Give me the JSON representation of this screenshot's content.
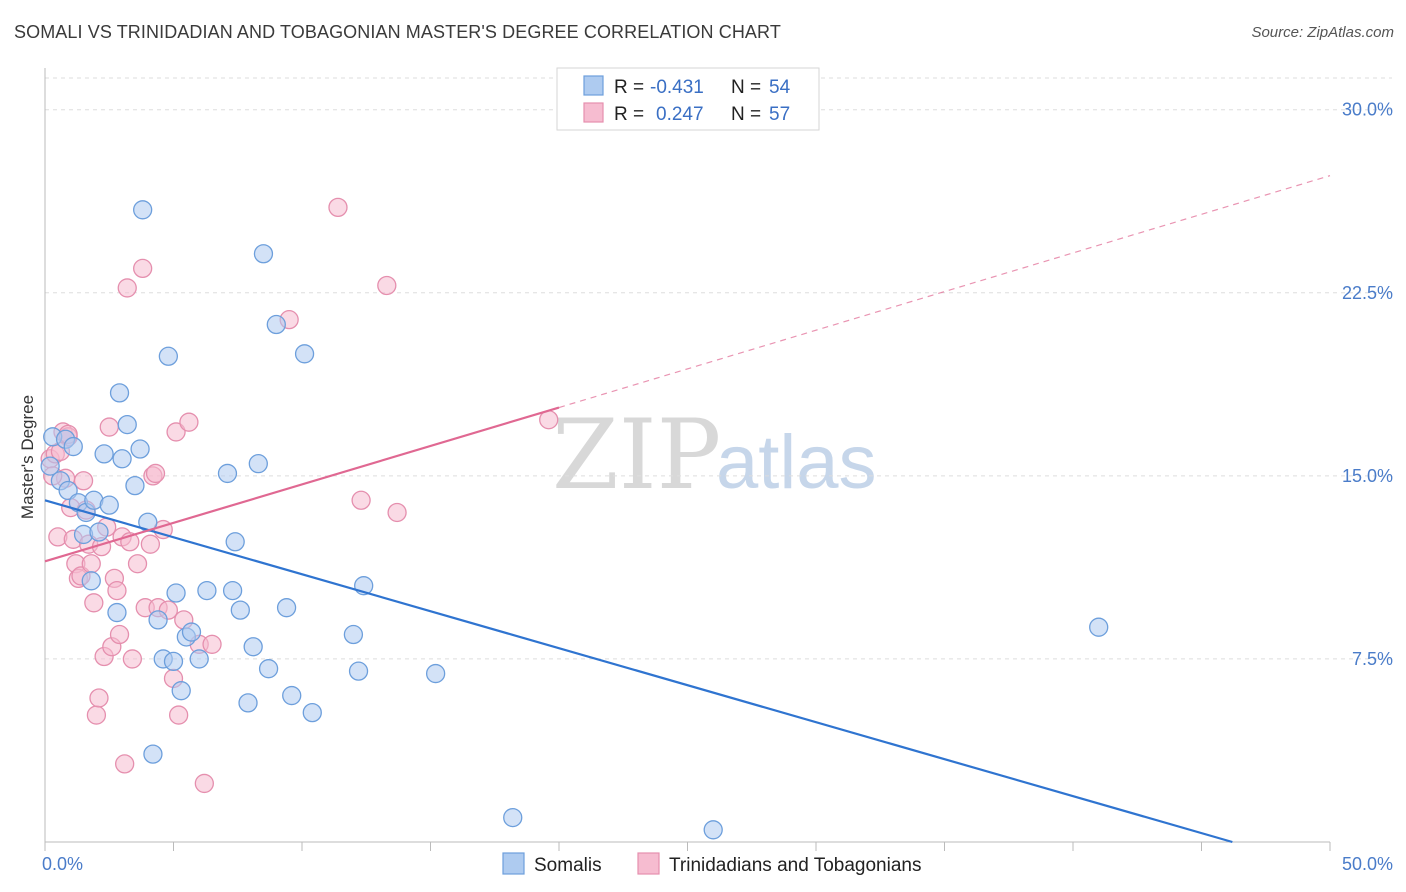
{
  "title": "SOMALI VS TRINIDADIAN AND TOBAGONIAN MASTER'S DEGREE CORRELATION CHART",
  "source": "Source: ZipAtlas.com",
  "colors": {
    "blue_fill": "#aecbf0",
    "blue_stroke": "#6d9fdc",
    "blue_line": "#2f74d0",
    "pink_fill": "#f6bcd0",
    "pink_stroke": "#e58fae",
    "pink_line": "#e06892",
    "tick_text": "#4a7cc9",
    "grid": "#dddddd"
  },
  "chart_data": {
    "type": "scatter",
    "ylabel": "Master's Degree",
    "x_ticks": [
      "0.0%",
      "50.0%"
    ],
    "y_ticks": [
      "30.0%",
      "22.5%",
      "15.0%",
      "7.5%"
    ],
    "y_tick_values": [
      30.0,
      22.5,
      15.0,
      7.5
    ],
    "xlim": [
      0,
      50
    ],
    "ylim": [
      0,
      31.3
    ],
    "grid": true,
    "legend": {
      "placement": "top-center",
      "entries": [
        {
          "r_label": "R =",
          "r_value": "-0.431",
          "n_label": "N =",
          "n_value": "54"
        },
        {
          "r_label": "R =",
          "r_value": "0.247",
          "n_label": "N =",
          "n_value": "57"
        }
      ]
    },
    "bottom_legend": [
      "Somalis",
      "Trinidadians and Tobagonians"
    ],
    "series": [
      {
        "name": "Somalis",
        "trend": {
          "x": [
            0,
            46.2
          ],
          "y": [
            14.0,
            0
          ]
        },
        "points": [
          [
            0.3,
            16.6
          ],
          [
            0.6,
            14.8
          ],
          [
            0.8,
            16.5
          ],
          [
            0.9,
            14.4
          ],
          [
            1.1,
            16.2
          ],
          [
            1.3,
            13.9
          ],
          [
            1.5,
            12.6
          ],
          [
            1.6,
            13.5
          ],
          [
            1.8,
            10.7
          ],
          [
            1.9,
            14.0
          ],
          [
            2.1,
            12.7
          ],
          [
            2.3,
            15.9
          ],
          [
            2.5,
            13.8
          ],
          [
            2.8,
            9.4
          ],
          [
            2.9,
            18.4
          ],
          [
            3.0,
            15.7
          ],
          [
            3.2,
            17.1
          ],
          [
            3.5,
            14.6
          ],
          [
            3.7,
            16.1
          ],
          [
            3.8,
            25.9
          ],
          [
            4.0,
            13.1
          ],
          [
            4.2,
            3.6
          ],
          [
            4.4,
            9.1
          ],
          [
            4.6,
            7.5
          ],
          [
            4.8,
            19.9
          ],
          [
            5.0,
            7.4
          ],
          [
            5.1,
            10.2
          ],
          [
            5.3,
            6.2
          ],
          [
            5.5,
            8.4
          ],
          [
            5.7,
            8.6
          ],
          [
            6.0,
            7.5
          ],
          [
            6.3,
            10.3
          ],
          [
            7.1,
            15.1
          ],
          [
            7.3,
            10.3
          ],
          [
            7.4,
            12.3
          ],
          [
            7.6,
            9.5
          ],
          [
            7.9,
            5.7
          ],
          [
            8.1,
            8.0
          ],
          [
            8.3,
            15.5
          ],
          [
            8.5,
            24.1
          ],
          [
            8.7,
            7.1
          ],
          [
            9.0,
            21.2
          ],
          [
            9.4,
            9.6
          ],
          [
            9.6,
            6.0
          ],
          [
            10.1,
            20.0
          ],
          [
            10.4,
            5.3
          ],
          [
            12.0,
            8.5
          ],
          [
            12.2,
            7.0
          ],
          [
            12.4,
            10.5
          ],
          [
            15.2,
            6.9
          ],
          [
            18.2,
            1.0
          ],
          [
            26.0,
            0.5
          ],
          [
            41.0,
            8.8
          ],
          [
            0.2,
            15.4
          ]
        ]
      },
      {
        "name": "Trinidadians and Tobagonians",
        "trend": {
          "x": [
            0,
            20
          ],
          "y": [
            11.5,
            17.8
          ]
        },
        "trend_extension": {
          "x": [
            20,
            50
          ],
          "y": [
            17.8,
            27.3
          ]
        },
        "points": [
          [
            0.2,
            15.7
          ],
          [
            0.4,
            15.9
          ],
          [
            0.5,
            12.5
          ],
          [
            0.7,
            16.8
          ],
          [
            0.8,
            14.9
          ],
          [
            0.9,
            16.6
          ],
          [
            1.0,
            13.7
          ],
          [
            1.1,
            12.4
          ],
          [
            1.2,
            11.4
          ],
          [
            1.3,
            10.8
          ],
          [
            1.4,
            10.9
          ],
          [
            1.6,
            13.6
          ],
          [
            1.7,
            12.2
          ],
          [
            1.8,
            11.4
          ],
          [
            1.9,
            9.8
          ],
          [
            2.0,
            5.2
          ],
          [
            2.1,
            5.9
          ],
          [
            2.2,
            12.1
          ],
          [
            2.3,
            7.6
          ],
          [
            2.4,
            12.9
          ],
          [
            2.5,
            17.0
          ],
          [
            2.6,
            8.0
          ],
          [
            2.7,
            10.8
          ],
          [
            2.8,
            10.3
          ],
          [
            2.9,
            8.5
          ],
          [
            3.0,
            12.5
          ],
          [
            3.1,
            3.2
          ],
          [
            3.2,
            22.7
          ],
          [
            3.3,
            12.3
          ],
          [
            3.4,
            7.5
          ],
          [
            3.6,
            11.4
          ],
          [
            3.8,
            23.5
          ],
          [
            3.9,
            9.6
          ],
          [
            4.1,
            12.2
          ],
          [
            4.2,
            15.0
          ],
          [
            4.3,
            15.1
          ],
          [
            4.4,
            9.6
          ],
          [
            4.6,
            12.8
          ],
          [
            4.8,
            9.5
          ],
          [
            5.0,
            6.7
          ],
          [
            5.1,
            16.8
          ],
          [
            5.2,
            5.2
          ],
          [
            5.4,
            9.1
          ],
          [
            5.6,
            17.2
          ],
          [
            6.0,
            8.1
          ],
          [
            6.2,
            2.4
          ],
          [
            6.5,
            8.1
          ],
          [
            9.5,
            21.4
          ],
          [
            11.4,
            26.0
          ],
          [
            12.3,
            14.0
          ],
          [
            13.3,
            22.8
          ],
          [
            13.7,
            13.5
          ],
          [
            19.6,
            17.3
          ],
          [
            0.3,
            15.0
          ],
          [
            0.6,
            16.0
          ],
          [
            0.9,
            16.7
          ],
          [
            1.5,
            14.8
          ]
        ]
      }
    ]
  },
  "watermark": {
    "zip": "ZIP",
    "atlas": "atlas"
  }
}
